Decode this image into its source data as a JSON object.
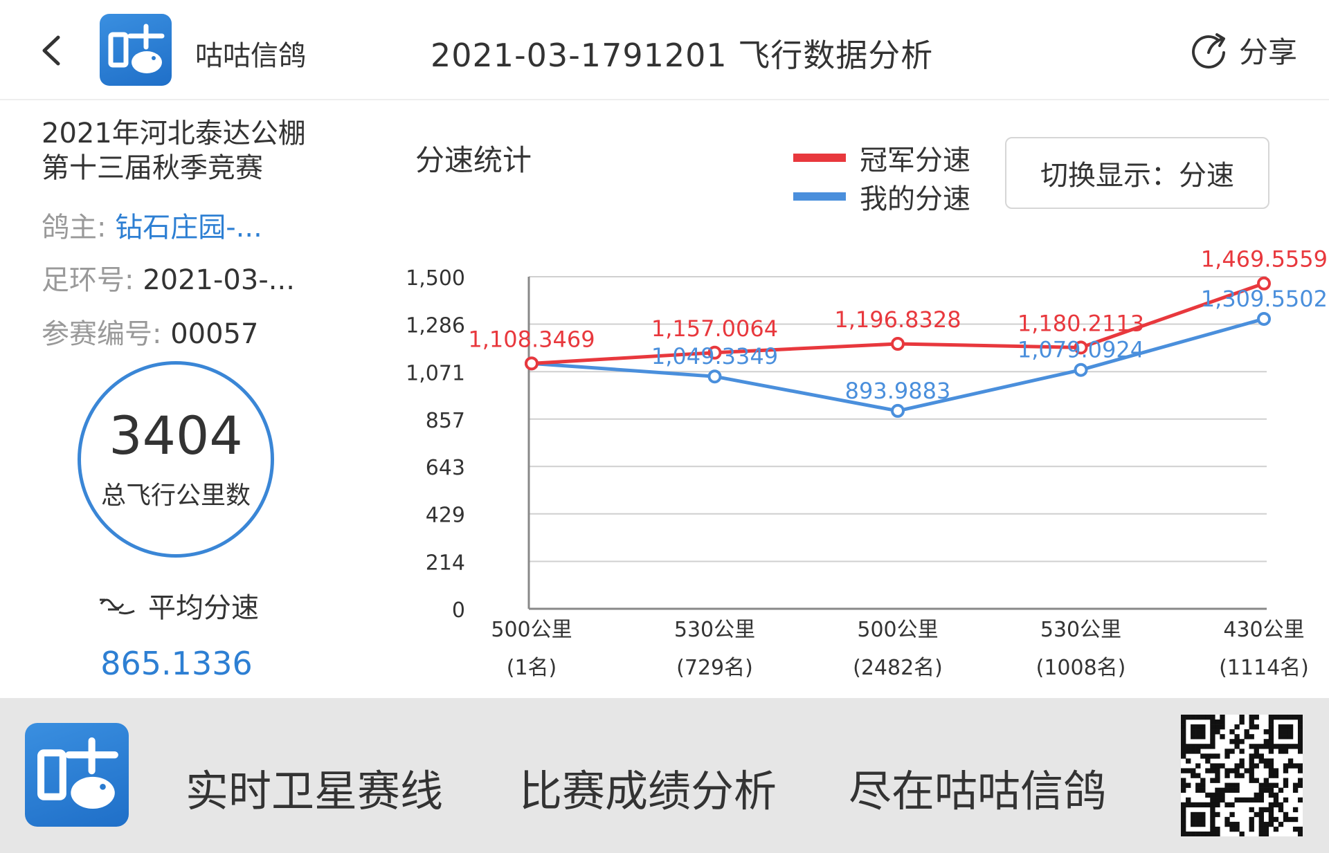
{
  "header": {
    "app_name": "咕咕信鸽",
    "title": "2021-03-1791201 飞行数据分析",
    "share_label": "分享"
  },
  "info": {
    "race_line1": "2021年河北泰达公棚",
    "race_line2": "第十三届秋季竞赛",
    "owner_key": "鸽主:",
    "owner_value": "钻石庄园-...",
    "ring_key": "足环号:",
    "ring_value": "2021-03-...",
    "entry_key": "参赛编号:",
    "entry_value": "00057",
    "total_km": "3404",
    "total_km_label": "总飞行公里数",
    "avg_label": "平均分速",
    "avg_value": "865.1336"
  },
  "chart_title": "分速统计",
  "toggle_label": "切换显示：分速",
  "colors": {
    "champion": "#e8383d",
    "mine": "#4a8fdc",
    "accent": "#2d7fd3"
  },
  "chart_data": {
    "type": "line",
    "categories": [
      "500公里\n(1名)",
      "530公里\n(729名)",
      "500公里\n(2482名)",
      "530公里\n(1008名)",
      "430公里\n(1114名)"
    ],
    "category_distance": [
      "500公里",
      "530公里",
      "500公里",
      "530公里",
      "430公里"
    ],
    "category_rank": [
      "(1名)",
      "(729名)",
      "(2482名)",
      "(1008名)",
      "(1114名)"
    ],
    "y_ticks": [
      "0",
      "214",
      "429",
      "643",
      "857",
      "1,071",
      "1,286",
      "1,500"
    ],
    "ylim": [
      0,
      1500
    ],
    "grid": true,
    "legend_position": "top-right",
    "series": [
      {
        "name": "冠军分速",
        "values": [
          1108.3469,
          1157.0064,
          1196.8328,
          1180.2113,
          1469.5559
        ],
        "labels": [
          "1,108.3469",
          "1,157.0064",
          "1,196.8328",
          "1,180.2113",
          "1,469.5559"
        ]
      },
      {
        "name": "我的分速",
        "values": [
          1108.3469,
          1049.3349,
          893.9883,
          1079.0924,
          1309.5502
        ],
        "labels": [
          "",
          "1,049.3349",
          "893.9883",
          "1,079.0924",
          "1,309.5502"
        ]
      }
    ]
  },
  "footer": {
    "slogan1": "实时卫星赛线",
    "slogan2": "比赛成绩分析",
    "slogan3": "尽在咕咕信鸽"
  }
}
